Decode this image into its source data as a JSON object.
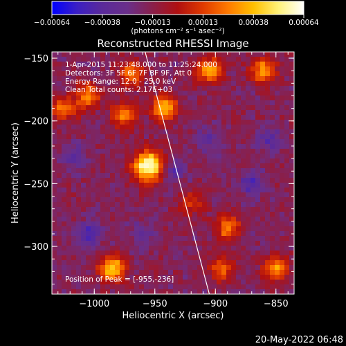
{
  "colors": {
    "background": "#000000",
    "text": "#ffffff",
    "colormap": [
      "#0000ff",
      "#3b1fc4",
      "#5a2a9a",
      "#6a2f8a",
      "#8a1f4a",
      "#b01010",
      "#e03a00",
      "#ff7a00",
      "#ffc000",
      "#fff27a",
      "#ffffff"
    ]
  },
  "colorbar": {
    "ticks": [
      "-0.00064",
      "-0.00038",
      "-0.00013",
      "0.00013",
      "0.00038",
      "0.00064"
    ],
    "unit_label": "(photons cm⁻² s⁻¹ asec⁻²)",
    "range": [
      -0.00064,
      0.00064
    ]
  },
  "chart_data": {
    "type": "heatmap",
    "title": "Reconstructed RHESSI Image",
    "xlabel": "Heliocentric X (arcsec)",
    "ylabel": "Heliocentric Y (arcsec)",
    "xlim": [
      -1035,
      -835
    ],
    "ylim": [
      -338,
      -145
    ],
    "xticks": [
      -1000,
      -950,
      -900,
      -850
    ],
    "yticks": [
      -150,
      -200,
      -250,
      -300
    ],
    "xtick_labels": [
      "−1000",
      "−950",
      "−900",
      "−850"
    ],
    "ytick_labels": [
      "−150",
      "−200",
      "−250",
      "−300"
    ],
    "limb_line": [
      [
        -958,
        -145
      ],
      [
        -905,
        -338
      ]
    ],
    "bright_sources": [
      {
        "x": -955,
        "y": -236,
        "level": 1.0
      },
      {
        "x": -942,
        "y": -190,
        "level": 0.7
      },
      {
        "x": -975,
        "y": -195,
        "level": 0.55
      },
      {
        "x": -905,
        "y": -160,
        "level": 0.6
      },
      {
        "x": -860,
        "y": -160,
        "level": 0.6
      },
      {
        "x": -970,
        "y": -162,
        "level": 0.5
      },
      {
        "x": -1005,
        "y": -180,
        "level": 0.55
      },
      {
        "x": -985,
        "y": -318,
        "level": 0.75
      },
      {
        "x": -1025,
        "y": -190,
        "level": 0.45
      },
      {
        "x": -890,
        "y": -285,
        "level": 0.5
      },
      {
        "x": -895,
        "y": -318,
        "level": 0.45
      },
      {
        "x": -850,
        "y": -318,
        "level": 0.55
      },
      {
        "x": -920,
        "y": -265,
        "level": 0.35
      }
    ],
    "dim_sources": [
      {
        "x": -1005,
        "y": -290,
        "level": -0.7
      },
      {
        "x": -935,
        "y": -240,
        "level": -0.6
      },
      {
        "x": -870,
        "y": -250,
        "level": -0.6
      },
      {
        "x": -1015,
        "y": -230,
        "level": -0.5
      },
      {
        "x": -905,
        "y": -215,
        "level": -0.5
      },
      {
        "x": -855,
        "y": -215,
        "level": -0.5
      },
      {
        "x": -960,
        "y": -290,
        "level": -0.45
      }
    ]
  },
  "annotations": {
    "time_range": "1-Apr-2015 11:23:48.000 to 11:25:24.000",
    "detectors": "Detectors: 3F 5F 6F 7F 8F 9F, Att 0",
    "energy": "Energy Range: 12.0 - 25.0 keV",
    "method": "Clean   Total counts: 2.17E+03",
    "peak": "Position of Peak = [-955,-236]"
  },
  "footer": {
    "date": "20-May-2022 06:48"
  }
}
